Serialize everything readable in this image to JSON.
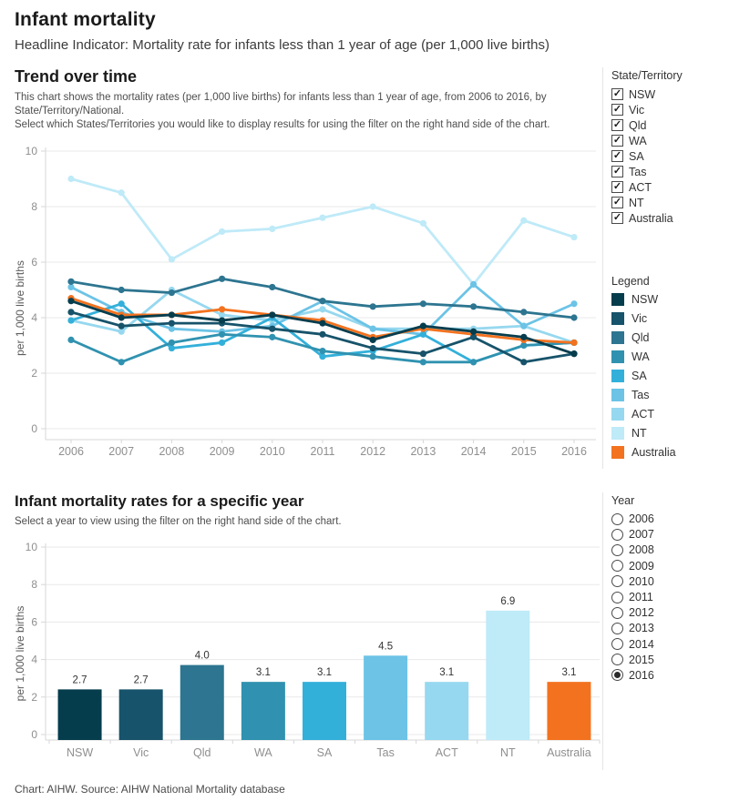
{
  "header": {
    "title": "Infant mortality",
    "subtitle": "Headline Indicator: Mortality rate for infants less than 1 year of age (per 1,000 live births)"
  },
  "trend_section": {
    "title": "Trend over time",
    "description_line1": "This chart shows the mortality rates (per 1,000 live births) for infants less than 1 year of age, from 2006 to 2016, by State/Territory/National.",
    "description_line2": "Select which States/Territories you would like to display results for using the filter on the right hand side of the chart.",
    "filter": {
      "title": "State/Territory",
      "items": [
        {
          "label": "NSW",
          "checked": true
        },
        {
          "label": "Vic",
          "checked": true
        },
        {
          "label": "Qld",
          "checked": true
        },
        {
          "label": "WA",
          "checked": true
        },
        {
          "label": "SA",
          "checked": true
        },
        {
          "label": "Tas",
          "checked": true
        },
        {
          "label": "ACT",
          "checked": true
        },
        {
          "label": "NT",
          "checked": true
        },
        {
          "label": "Australia",
          "checked": true
        }
      ]
    },
    "legend": {
      "title": "Legend",
      "items": [
        {
          "label": "NSW",
          "color": "#063d4d"
        },
        {
          "label": "Vic",
          "color": "#17536a"
        },
        {
          "label": "Qld",
          "color": "#2d7590"
        },
        {
          "label": "WA",
          "color": "#3092b0"
        },
        {
          "label": "SA",
          "color": "#33b0da"
        },
        {
          "label": "Tas",
          "color": "#6cc3e6"
        },
        {
          "label": "ACT",
          "color": "#96d8ef"
        },
        {
          "label": "NT",
          "color": "#bfeaf8"
        },
        {
          "label": "Australia",
          "color": "#f3721f"
        }
      ]
    }
  },
  "year_section": {
    "title": "Infant mortality rates for a specific year",
    "description": "Select a year to view using the filter on the right hand side of the chart.",
    "filter": {
      "title": "Year",
      "options": [
        "2006",
        "2007",
        "2008",
        "2009",
        "2010",
        "2011",
        "2012",
        "2013",
        "2014",
        "2015",
        "2016"
      ],
      "selected": "2016"
    }
  },
  "footer": {
    "text": "Chart: AIHW. Source: AIHW National Mortality database"
  },
  "chart_data": [
    {
      "type": "line",
      "title": "Trend over time",
      "x": [
        2006,
        2007,
        2008,
        2009,
        2010,
        2011,
        2012,
        2013,
        2014,
        2015,
        2016
      ],
      "xlabel": "",
      "ylabel": "per 1,000 live births",
      "ylim": [
        0,
        10
      ],
      "yticks": [
        0,
        2,
        4,
        6,
        8,
        10
      ],
      "grid": true,
      "legend_position": "right",
      "series": [
        {
          "name": "NSW",
          "color": "#063d4d",
          "values": [
            4.6,
            4.0,
            4.1,
            3.9,
            4.1,
            3.8,
            3.2,
            3.7,
            3.5,
            3.3,
            2.7
          ]
        },
        {
          "name": "Vic",
          "color": "#17536a",
          "values": [
            4.2,
            3.7,
            3.8,
            3.8,
            3.6,
            3.4,
            2.9,
            2.7,
            3.3,
            2.4,
            2.7
          ]
        },
        {
          "name": "Qld",
          "color": "#2d7590",
          "values": [
            5.3,
            5.0,
            4.9,
            5.4,
            5.1,
            4.6,
            4.4,
            4.5,
            4.4,
            4.2,
            4.0
          ]
        },
        {
          "name": "WA",
          "color": "#3092b0",
          "values": [
            3.2,
            2.4,
            3.1,
            3.4,
            3.3,
            2.8,
            2.6,
            2.4,
            2.4,
            3.0,
            3.1
          ]
        },
        {
          "name": "SA",
          "color": "#33b0da",
          "values": [
            3.9,
            4.5,
            2.9,
            3.1,
            4.0,
            2.6,
            2.8,
            3.4,
            2.4,
            3.0,
            3.1
          ]
        },
        {
          "name": "Tas",
          "color": "#6cc3e6",
          "values": [
            5.1,
            4.2,
            3.6,
            3.5,
            3.7,
            4.6,
            3.6,
            3.4,
            5.2,
            3.7,
            4.5
          ]
        },
        {
          "name": "ACT",
          "color": "#96d8ef",
          "values": [
            3.9,
            3.5,
            5.0,
            4.1,
            3.9,
            4.3,
            3.6,
            3.6,
            3.6,
            3.7,
            3.1
          ]
        },
        {
          "name": "NT",
          "color": "#bfeaf8",
          "values": [
            9.0,
            8.5,
            6.1,
            7.1,
            7.2,
            7.6,
            8.0,
            7.4,
            5.2,
            7.5,
            6.9
          ]
        },
        {
          "name": "Australia",
          "color": "#f3721f",
          "values": [
            4.7,
            4.1,
            4.1,
            4.3,
            4.1,
            3.9,
            3.3,
            3.6,
            3.4,
            3.2,
            3.1
          ]
        }
      ],
      "draw_order": [
        7,
        6,
        5,
        4,
        3,
        2,
        8,
        1,
        0
      ]
    },
    {
      "type": "bar",
      "title": "Infant mortality rates for a specific year",
      "categories": [
        "NSW",
        "Vic",
        "Qld",
        "WA",
        "SA",
        "Tas",
        "ACT",
        "NT",
        "Australia"
      ],
      "values": [
        2.7,
        2.7,
        4.0,
        3.1,
        3.1,
        4.5,
        3.1,
        6.9,
        3.1
      ],
      "labels": [
        "2.7",
        "2.7",
        "4.0",
        "3.1",
        "3.1",
        "4.5",
        "3.1",
        "6.9",
        "3.1"
      ],
      "colors": [
        "#063d4d",
        "#17536a",
        "#2d7590",
        "#3092b0",
        "#33b0da",
        "#6cc3e6",
        "#96d8ef",
        "#bfeaf8",
        "#f3721f"
      ],
      "xlabel": "",
      "ylabel": "per 1,000 live births",
      "ylim": [
        0,
        10
      ],
      "yticks": [
        0,
        2,
        4,
        6,
        8,
        10
      ],
      "grid": true,
      "year": "2016"
    }
  ]
}
